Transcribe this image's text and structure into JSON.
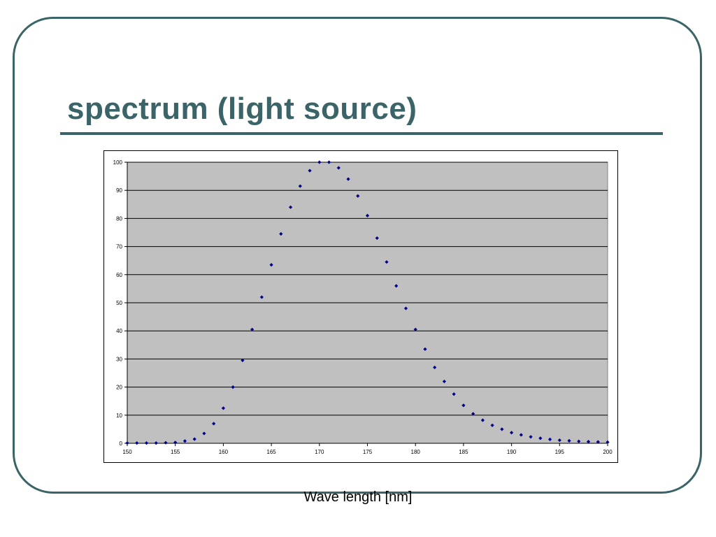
{
  "slide": {
    "title": "spectrum (light source)",
    "accent_color": "#3a6467"
  },
  "chart_data": {
    "type": "scatter",
    "title": "",
    "xlabel": "Wave length [nm]",
    "ylabel": "",
    "xlim": [
      150,
      200
    ],
    "ylim": [
      0,
      100
    ],
    "xticks": [
      150,
      155,
      160,
      165,
      170,
      175,
      180,
      185,
      190,
      195,
      200
    ],
    "yticks": [
      0,
      10,
      20,
      30,
      40,
      50,
      60,
      70,
      80,
      90,
      100
    ],
    "grid": "horizontal",
    "legend": "none",
    "plot_background": "#c0c0c0",
    "marker_color": "#00008b",
    "marker": "diamond",
    "x": [
      150,
      151,
      152,
      153,
      154,
      155,
      156,
      157,
      158,
      159,
      160,
      161,
      162,
      163,
      164,
      165,
      166,
      167,
      168,
      169,
      170,
      171,
      172,
      173,
      174,
      175,
      176,
      177,
      178,
      179,
      180,
      181,
      182,
      183,
      184,
      185,
      186,
      187,
      188,
      189,
      190,
      191,
      192,
      193,
      194,
      195,
      196,
      197,
      198,
      199,
      200
    ],
    "y": [
      0.1,
      0.1,
      0.1,
      0.1,
      0.2,
      0.3,
      0.8,
      1.5,
      3.5,
      7,
      12.5,
      20,
      29.5,
      40.5,
      52,
      63.5,
      74.5,
      84,
      91.5,
      97,
      100,
      100,
      98,
      94,
      88,
      81,
      73,
      64.5,
      56,
      48,
      40.5,
      33.5,
      27,
      22,
      17.5,
      13.5,
      10.5,
      8.2,
      6.4,
      5,
      3.8,
      3,
      2.3,
      1.8,
      1.4,
      1.1,
      0.9,
      0.7,
      0.6,
      0.5,
      0.4
    ]
  }
}
